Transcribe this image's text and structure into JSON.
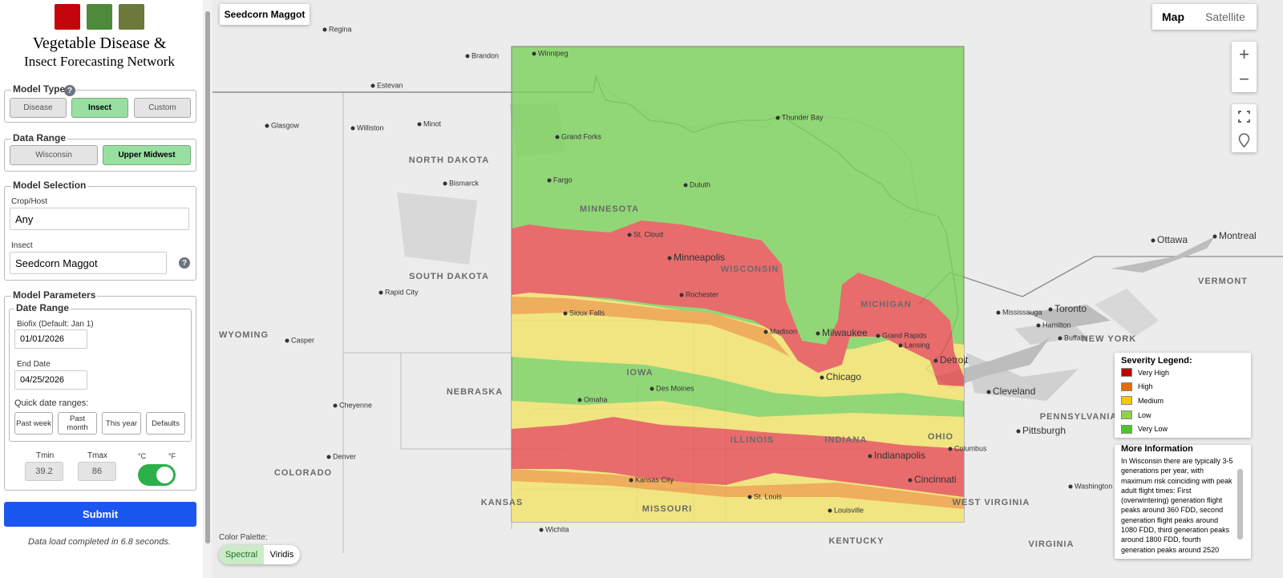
{
  "sidebar": {
    "title_line1": "Vegetable Disease &",
    "title_line2": "Insect Forecasting Network",
    "model_type": {
      "legend": "Model Type",
      "help": "?",
      "buttons": [
        "Disease",
        "Insect",
        "Custom"
      ]
    },
    "data_range": {
      "legend": "Data Range",
      "buttons": [
        "Wisconsin",
        "Upper Midwest"
      ]
    },
    "model_selection": {
      "legend": "Model Selection",
      "crop_label": "Crop/Host",
      "crop_value": "Any",
      "insect_label": "Insect",
      "insect_value": "Seedcorn Maggot",
      "help": "?"
    },
    "model_parameters": {
      "legend": "Model Parameters",
      "date_range_legend": "Date Range",
      "biofix_label": "Biofix (Default: Jan 1)",
      "biofix_value": "01/01/2026",
      "end_label": "End Date",
      "end_value": "04/25/2026",
      "quick_label": "Quick date ranges:",
      "quick_buttons": [
        "Past week",
        "Past month",
        "This year",
        "Defaults"
      ],
      "tmin_label": "Tmin",
      "tmax_label": "Tmax",
      "tmin_value": "39.2",
      "tmax_value": "86",
      "unit_c": "°C",
      "unit_f": "°F"
    },
    "submit": "Submit",
    "status": "Data load completed in 6.8 seconds."
  },
  "map": {
    "title": "Seedcorn Maggot",
    "map_types": [
      "Map",
      "Satellite"
    ],
    "zoom_in": "+",
    "zoom_out": "−",
    "palette_label": "Color Palette:",
    "palettes": [
      "Spectral",
      "Viridis"
    ],
    "labels": [
      "Winnipeg",
      "Regina",
      "Brandon",
      "Estevan",
      "Minot",
      "Williston",
      "Glasgow",
      "Bismarck",
      "NORTH DAKOTA",
      "Fargo",
      "Grand Forks",
      "Duluth",
      "Thunder Bay",
      "MINNESOTA",
      "Minneapolis",
      "St. Cloud",
      "Rochester",
      "WISCONSIN",
      "Milwaukee",
      "Madison",
      "Chicago",
      "MICHIGAN",
      "Detroit",
      "Lansing",
      "Grand Rapids",
      "Toronto",
      "Ottawa",
      "Montreal",
      "Hamilton",
      "Buffalo",
      "Cleveland",
      "Pittsburgh",
      "Columbus",
      "Indianapolis",
      "Cincinnati",
      "OHIO",
      "INDIANA",
      "ILLINOIS",
      "IOWA",
      "Des Moines",
      "Omaha",
      "Sioux Falls",
      "SOUTH DAKOTA",
      "NEBRASKA",
      "Kansas City",
      "KANSAS",
      "MISSOURI",
      "St. Louis",
      "Denver",
      "COLORADO",
      "WYOMING",
      "Casper",
      "Cheyenne",
      "Wichita",
      "KENTUCKY",
      "Louisville",
      "WEST VIRGINIA",
      "VIRGINIA",
      "PENNSYLVANIA",
      "NEW YORK",
      "VERMONT",
      "Washington",
      "Mississauga",
      "Rapid City"
    ],
    "severity_legend": {
      "title": "Severity Legend:",
      "items": [
        {
          "label": "Very High",
          "color": "#c00000"
        },
        {
          "label": "High",
          "color": "#e36c09"
        },
        {
          "label": "Medium",
          "color": "#f5c800"
        },
        {
          "label": "Low",
          "color": "#92d050"
        },
        {
          "label": "Very Low",
          "color": "#4cc52a"
        }
      ]
    },
    "more_info": {
      "title": "More Information",
      "text": "In Wisconsin there are typically 3-5 generations per year, with maximum risk coinciding with peak adult flight times: First (overwintering) generation flight peaks around 360 FDD, second generation flight peaks around 1080 FDD, third generation peaks around 1800 FDD, fourth generation peaks around 2520"
    }
  }
}
